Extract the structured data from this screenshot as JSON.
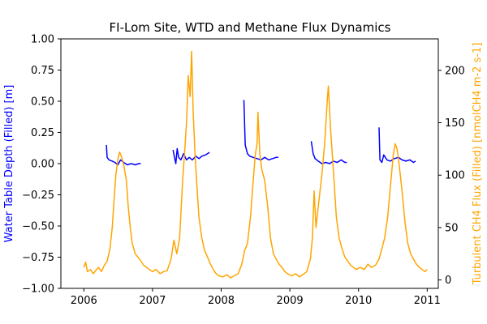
{
  "chart_data": {
    "type": "line",
    "title": "FI-Lom Site, WTD and Methane Flux Dynamics",
    "xlabel": "",
    "x_ticks": [
      "2006",
      "2007",
      "2008",
      "2009",
      "2010",
      "2011"
    ],
    "xlim": [
      "2005-09-01",
      "2011-03-01"
    ],
    "y_left": {
      "label": "Water Table Depth (Filled) [m]",
      "color": "#0000ff",
      "ylim": [
        -1.0,
        1.0
      ],
      "ticks": [
        "−1.00",
        "−0.75",
        "−0.50",
        "−0.25",
        "0.00",
        "0.25",
        "0.50",
        "0.75",
        "1.00"
      ]
    },
    "y_right": {
      "label": "Turbulent CH4 Flux (Filled) [nmolCH4 m-2 s-1]",
      "color": "#ffa500",
      "ylim": [
        -8,
        230
      ],
      "ticks": [
        "0",
        "50",
        "100",
        "150",
        "200"
      ]
    },
    "grid": false,
    "series": [
      {
        "axis": "left",
        "color": "#0000ff",
        "points": [
          [
            "2006-05-01",
            0.15
          ],
          [
            "2006-05-05",
            0.05
          ],
          [
            "2006-05-15",
            0.03
          ],
          [
            "2006-06-01",
            0.02
          ],
          [
            "2006-06-15",
            0.01
          ],
          [
            "2006-07-01",
            -0.01
          ],
          [
            "2006-07-15",
            0.03
          ],
          [
            "2006-08-01",
            0.01
          ],
          [
            "2006-08-20",
            -0.01
          ],
          [
            "2006-09-10",
            0.0
          ],
          [
            "2006-10-01",
            -0.01
          ],
          [
            "2006-10-20",
            0.0
          ],
          [
            "2006-10-31",
            0.0
          ],
          null,
          [
            "2007-04-20",
            0.11
          ],
          [
            "2007-04-28",
            0.05
          ],
          [
            "2007-05-05",
            0.0
          ],
          [
            "2007-05-12",
            0.12
          ],
          [
            "2007-05-20",
            0.05
          ],
          [
            "2007-06-01",
            0.03
          ],
          [
            "2007-06-15",
            0.08
          ],
          [
            "2007-07-01",
            0.03
          ],
          [
            "2007-07-15",
            0.05
          ],
          [
            "2007-08-01",
            0.03
          ],
          [
            "2007-08-20",
            0.06
          ],
          [
            "2007-09-05",
            0.04
          ],
          [
            "2007-09-20",
            0.06
          ],
          [
            "2007-10-10",
            0.07
          ],
          [
            "2007-10-31",
            0.09
          ],
          null,
          [
            "2008-05-01",
            0.51
          ],
          [
            "2008-05-08",
            0.15
          ],
          [
            "2008-05-20",
            0.08
          ],
          [
            "2008-06-01",
            0.06
          ],
          [
            "2008-06-20",
            0.05
          ],
          [
            "2008-07-10",
            0.04
          ],
          [
            "2008-08-01",
            0.03
          ],
          [
            "2008-08-20",
            0.05
          ],
          [
            "2008-09-10",
            0.03
          ],
          [
            "2008-10-01",
            0.04
          ],
          [
            "2008-10-20",
            0.05
          ],
          [
            "2008-10-31",
            0.05
          ],
          null,
          [
            "2009-04-25",
            0.18
          ],
          [
            "2009-05-05",
            0.08
          ],
          [
            "2009-05-15",
            0.04
          ],
          [
            "2009-06-01",
            0.02
          ],
          [
            "2009-06-20",
            0.0
          ],
          [
            "2009-07-10",
            0.01
          ],
          [
            "2009-08-01",
            0.0
          ],
          [
            "2009-08-20",
            0.02
          ],
          [
            "2009-09-10",
            0.01
          ],
          [
            "2009-10-01",
            0.03
          ],
          [
            "2009-10-20",
            0.01
          ],
          [
            "2009-10-31",
            0.01
          ],
          null,
          [
            "2010-04-20",
            0.29
          ],
          [
            "2010-04-25",
            0.03
          ],
          [
            "2010-05-05",
            0.01
          ],
          [
            "2010-05-15",
            0.07
          ],
          [
            "2010-06-01",
            0.03
          ],
          [
            "2010-06-20",
            0.02
          ],
          [
            "2010-07-10",
            0.04
          ],
          [
            "2010-08-01",
            0.05
          ],
          [
            "2010-08-20",
            0.03
          ],
          [
            "2010-09-10",
            0.02
          ],
          [
            "2010-10-01",
            0.03
          ],
          [
            "2010-10-20",
            0.01
          ],
          [
            "2010-10-31",
            0.02
          ]
        ]
      },
      {
        "axis": "right",
        "color": "#ffa500",
        "points": [
          [
            "2006-01-01",
            12
          ],
          [
            "2006-01-10",
            17
          ],
          [
            "2006-01-20",
            8
          ],
          [
            "2006-02-05",
            10
          ],
          [
            "2006-02-20",
            6
          ],
          [
            "2006-03-05",
            9
          ],
          [
            "2006-03-20",
            12
          ],
          [
            "2006-04-05",
            8
          ],
          [
            "2006-04-20",
            14
          ],
          [
            "2006-05-05",
            18
          ],
          [
            "2006-05-20",
            30
          ],
          [
            "2006-06-01",
            50
          ],
          [
            "2006-06-10",
            75
          ],
          [
            "2006-06-20",
            100
          ],
          [
            "2006-07-01",
            115
          ],
          [
            "2006-07-10",
            122
          ],
          [
            "2006-07-20",
            118
          ],
          [
            "2006-08-01",
            110
          ],
          [
            "2006-08-15",
            95
          ],
          [
            "2006-08-25",
            70
          ],
          [
            "2006-09-05",
            50
          ],
          [
            "2006-09-15",
            35
          ],
          [
            "2006-10-01",
            25
          ],
          [
            "2006-10-15",
            22
          ],
          [
            "2006-11-01",
            18
          ],
          [
            "2006-11-15",
            14
          ],
          [
            "2006-12-01",
            12
          ],
          [
            "2006-12-15",
            10
          ],
          [
            "2007-01-01",
            8
          ],
          [
            "2007-01-20",
            10
          ],
          [
            "2007-02-10",
            6
          ],
          [
            "2007-03-01",
            8
          ],
          [
            "2007-03-20",
            9
          ],
          [
            "2007-04-10",
            20
          ],
          [
            "2007-04-25",
            38
          ],
          [
            "2007-05-10",
            25
          ],
          [
            "2007-05-25",
            40
          ],
          [
            "2007-06-10",
            95
          ],
          [
            "2007-06-20",
            120
          ],
          [
            "2007-07-01",
            150
          ],
          [
            "2007-07-10",
            195
          ],
          [
            "2007-07-20",
            175
          ],
          [
            "2007-07-28",
            218
          ],
          [
            "2007-08-05",
            160
          ],
          [
            "2007-08-15",
            120
          ],
          [
            "2007-08-25",
            90
          ],
          [
            "2007-09-05",
            60
          ],
          [
            "2007-09-20",
            40
          ],
          [
            "2007-10-05",
            28
          ],
          [
            "2007-10-20",
            22
          ],
          [
            "2007-11-05",
            15
          ],
          [
            "2007-11-20",
            10
          ],
          [
            "2007-12-05",
            6
          ],
          [
            "2007-12-20",
            4
          ],
          [
            "2008-01-10",
            3
          ],
          [
            "2008-02-01",
            5
          ],
          [
            "2008-02-20",
            2
          ],
          [
            "2008-03-10",
            4
          ],
          [
            "2008-04-01",
            6
          ],
          [
            "2008-04-20",
            15
          ],
          [
            "2008-05-05",
            28
          ],
          [
            "2008-05-20",
            35
          ],
          [
            "2008-06-05",
            60
          ],
          [
            "2008-06-20",
            95
          ],
          [
            "2008-07-01",
            120
          ],
          [
            "2008-07-10",
            130
          ],
          [
            "2008-07-15",
            160
          ],
          [
            "2008-07-25",
            120
          ],
          [
            "2008-08-05",
            105
          ],
          [
            "2008-08-20",
            95
          ],
          [
            "2008-09-05",
            70
          ],
          [
            "2008-09-20",
            40
          ],
          [
            "2008-10-05",
            25
          ],
          [
            "2008-10-20",
            20
          ],
          [
            "2008-11-05",
            15
          ],
          [
            "2008-11-20",
            12
          ],
          [
            "2008-12-05",
            8
          ],
          [
            "2008-12-20",
            6
          ],
          [
            "2009-01-10",
            4
          ],
          [
            "2009-02-01",
            6
          ],
          [
            "2009-02-20",
            3
          ],
          [
            "2009-03-10",
            5
          ],
          [
            "2009-04-01",
            8
          ],
          [
            "2009-04-20",
            20
          ],
          [
            "2009-05-01",
            40
          ],
          [
            "2009-05-10",
            85
          ],
          [
            "2009-05-20",
            50
          ],
          [
            "2009-06-01",
            70
          ],
          [
            "2009-06-20",
            100
          ],
          [
            "2009-07-05",
            130
          ],
          [
            "2009-07-20",
            175
          ],
          [
            "2009-07-25",
            185
          ],
          [
            "2009-08-05",
            145
          ],
          [
            "2009-08-20",
            105
          ],
          [
            "2009-09-05",
            60
          ],
          [
            "2009-09-20",
            40
          ],
          [
            "2009-10-05",
            30
          ],
          [
            "2009-10-20",
            22
          ],
          [
            "2009-11-05",
            18
          ],
          [
            "2009-11-20",
            14
          ],
          [
            "2009-12-05",
            12
          ],
          [
            "2009-12-20",
            10
          ],
          [
            "2010-01-10",
            12
          ],
          [
            "2010-02-01",
            10
          ],
          [
            "2010-02-20",
            15
          ],
          [
            "2010-03-10",
            12
          ],
          [
            "2010-04-01",
            14
          ],
          [
            "2010-04-20",
            20
          ],
          [
            "2010-05-05",
            30
          ],
          [
            "2010-05-20",
            40
          ],
          [
            "2010-06-05",
            60
          ],
          [
            "2010-06-20",
            90
          ],
          [
            "2010-07-05",
            120
          ],
          [
            "2010-07-15",
            130
          ],
          [
            "2010-07-25",
            125
          ],
          [
            "2010-08-05",
            110
          ],
          [
            "2010-08-20",
            85
          ],
          [
            "2010-09-05",
            55
          ],
          [
            "2010-09-20",
            35
          ],
          [
            "2010-10-05",
            25
          ],
          [
            "2010-10-20",
            20
          ],
          [
            "2010-11-05",
            15
          ],
          [
            "2010-11-20",
            12
          ],
          [
            "2010-12-05",
            10
          ],
          [
            "2010-12-20",
            8
          ],
          [
            "2010-12-31",
            10
          ]
        ]
      }
    ]
  }
}
